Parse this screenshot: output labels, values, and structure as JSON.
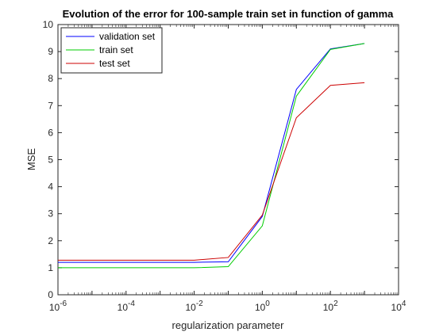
{
  "chart_data": {
    "type": "line",
    "title": "Evolution of the error for 100-sample train set in function of gamma",
    "xlabel": "regularization parameter",
    "ylabel": "MSE",
    "xscale": "log",
    "xlim": [
      1e-06,
      10000
    ],
    "ylim": [
      0,
      10
    ],
    "x_ticks": [
      1e-06,
      0.0001,
      0.01,
      1,
      100,
      10000
    ],
    "x_tick_labels": [
      {
        "base": "10",
        "exp": "-6"
      },
      {
        "base": "10",
        "exp": "-4"
      },
      {
        "base": "10",
        "exp": "-2"
      },
      {
        "base": "10",
        "exp": "0"
      },
      {
        "base": "10",
        "exp": "2"
      },
      {
        "base": "10",
        "exp": "4"
      }
    ],
    "y_ticks": [
      0,
      1,
      2,
      3,
      4,
      5,
      6,
      7,
      8,
      9,
      10
    ],
    "y_tick_labels": [
      "0",
      "1",
      "2",
      "3",
      "4",
      "5",
      "6",
      "7",
      "8",
      "9",
      "10"
    ],
    "grid": false,
    "legend_position": "top-left",
    "x": [
      1e-06,
      1e-05,
      0.0001,
      0.001,
      0.01,
      0.1,
      1,
      10,
      100,
      1000
    ],
    "series": [
      {
        "name": "validation set",
        "color": "#0000ff",
        "values": [
          1.2,
          1.2,
          1.2,
          1.2,
          1.2,
          1.22,
          2.9,
          7.6,
          9.1,
          9.3
        ]
      },
      {
        "name": "train set",
        "color": "#00cc00",
        "values": [
          1.0,
          1.0,
          1.0,
          1.0,
          1.0,
          1.04,
          2.55,
          7.35,
          9.08,
          9.3
        ]
      },
      {
        "name": "test set",
        "color": "#cc0000",
        "values": [
          1.28,
          1.28,
          1.28,
          1.28,
          1.28,
          1.38,
          2.95,
          6.55,
          7.75,
          7.85
        ]
      }
    ]
  }
}
